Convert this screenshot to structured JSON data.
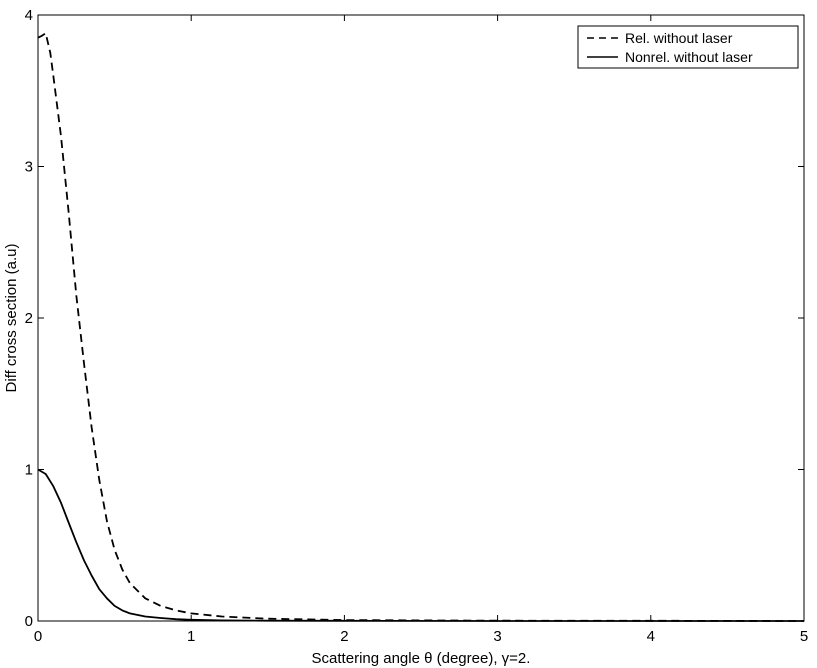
{
  "chart_data": {
    "type": "line",
    "title": "",
    "xlabel": "Scattering angle θ (degree), γ=2.",
    "ylabel": "Diff cross section (a.u)",
    "xlim": [
      0,
      5
    ],
    "ylim": [
      0,
      4
    ],
    "xticks": [
      0,
      1,
      2,
      3,
      4,
      5
    ],
    "yticks": [
      0,
      1,
      2,
      3,
      4
    ],
    "xtick_labels": [
      "0",
      "1",
      "2",
      "3",
      "4",
      "5"
    ],
    "ytick_labels": [
      "0",
      "1",
      "2",
      "3",
      "4"
    ],
    "grid": false,
    "legend_position": "top-right",
    "series": [
      {
        "name": "Rel. without laser",
        "style": "dashed",
        "color": "#000000",
        "x": [
          0.0,
          0.02,
          0.05,
          0.08,
          0.1,
          0.15,
          0.2,
          0.25,
          0.3,
          0.35,
          0.4,
          0.45,
          0.5,
          0.55,
          0.6,
          0.7,
          0.8,
          0.9,
          1.0,
          1.2,
          1.5,
          2.0,
          3.0,
          4.0,
          5.0
        ],
        "y": [
          3.85,
          3.86,
          3.88,
          3.75,
          3.6,
          3.2,
          2.7,
          2.15,
          1.7,
          1.28,
          0.93,
          0.66,
          0.47,
          0.34,
          0.25,
          0.15,
          0.1,
          0.07,
          0.05,
          0.03,
          0.015,
          0.006,
          0.002,
          0.001,
          0.0
        ]
      },
      {
        "name": "Nonrel. without laser",
        "style": "solid",
        "color": "#000000",
        "x": [
          0.0,
          0.05,
          0.1,
          0.15,
          0.2,
          0.25,
          0.3,
          0.35,
          0.4,
          0.45,
          0.5,
          0.55,
          0.6,
          0.7,
          0.8,
          0.9,
          1.0,
          1.2,
          1.5,
          2.0,
          3.0,
          4.0,
          5.0
        ],
        "y": [
          1.0,
          0.97,
          0.89,
          0.78,
          0.65,
          0.52,
          0.4,
          0.3,
          0.21,
          0.15,
          0.1,
          0.07,
          0.05,
          0.03,
          0.02,
          0.012,
          0.008,
          0.004,
          0.002,
          0.001,
          0.0,
          0.0,
          0.0
        ]
      }
    ]
  }
}
